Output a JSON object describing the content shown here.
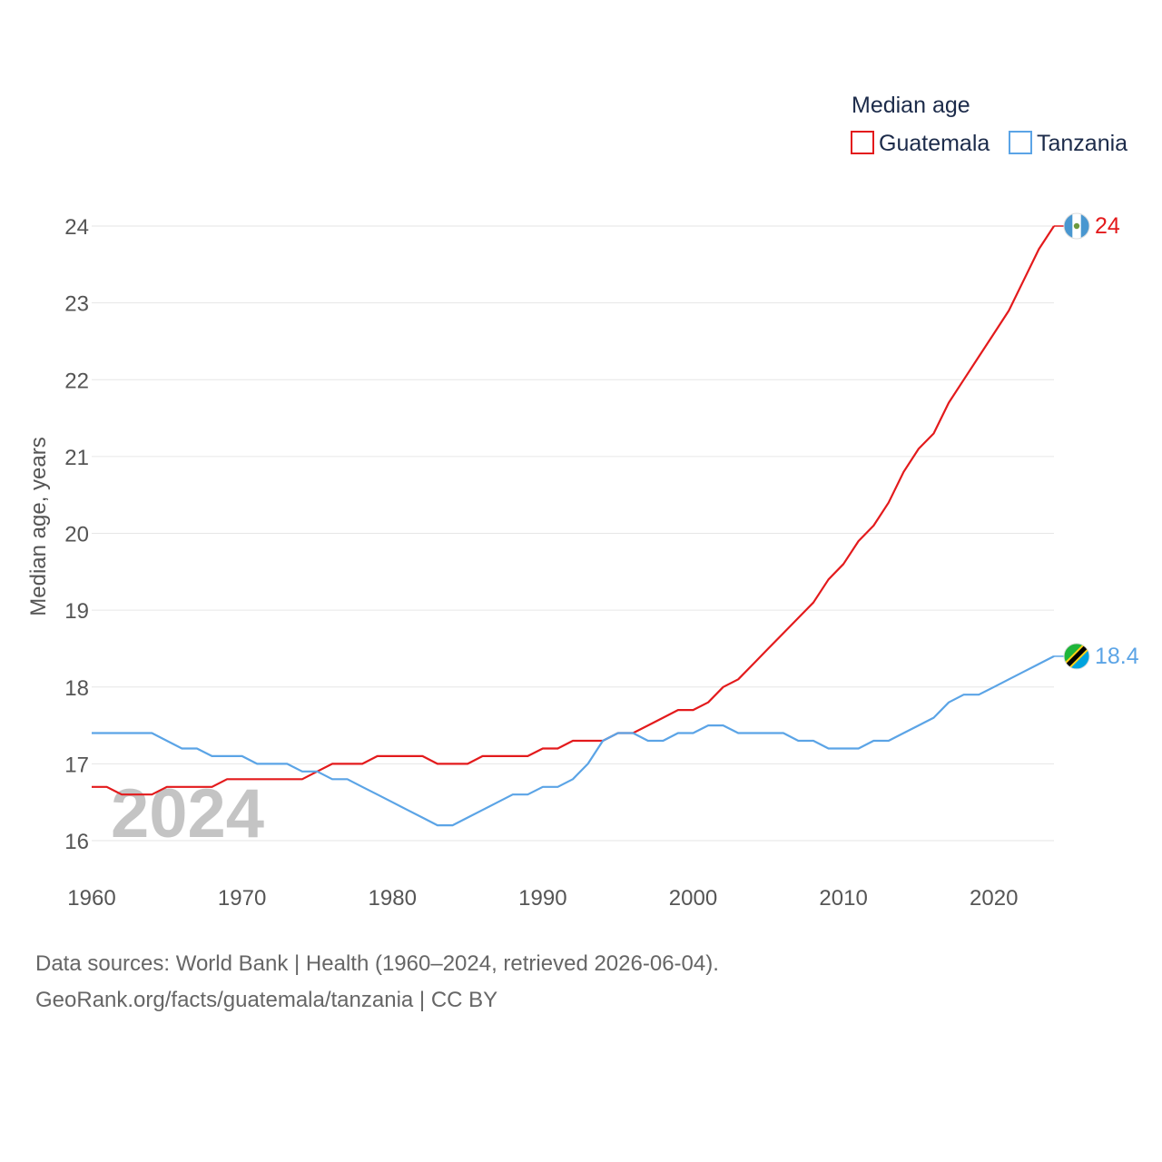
{
  "chart_data": {
    "type": "line",
    "legend_title": "Median age",
    "ylabel": "Median age, years",
    "xlim": [
      1960,
      2024
    ],
    "ylim": [
      16,
      24
    ],
    "x_ticks": [
      1960,
      1970,
      1980,
      1990,
      2000,
      2010,
      2020
    ],
    "y_ticks": [
      16,
      17,
      18,
      19,
      20,
      21,
      22,
      23,
      24
    ],
    "year_badge": "2024",
    "series": [
      {
        "name": "Guatemala",
        "color": "#e31a1c",
        "end_label": "24",
        "flag_icon": "guatemala-flag-icon",
        "x": [
          1960,
          1961,
          1962,
          1963,
          1964,
          1965,
          1966,
          1967,
          1968,
          1969,
          1970,
          1971,
          1972,
          1973,
          1974,
          1975,
          1976,
          1977,
          1978,
          1979,
          1980,
          1981,
          1982,
          1983,
          1984,
          1985,
          1986,
          1987,
          1988,
          1989,
          1990,
          1991,
          1992,
          1993,
          1994,
          1995,
          1996,
          1997,
          1998,
          1999,
          2000,
          2001,
          2002,
          2003,
          2004,
          2005,
          2006,
          2007,
          2008,
          2009,
          2010,
          2011,
          2012,
          2013,
          2014,
          2015,
          2016,
          2017,
          2018,
          2019,
          2020,
          2021,
          2022,
          2023,
          2024
        ],
        "values": [
          16.7,
          16.7,
          16.6,
          16.6,
          16.6,
          16.7,
          16.7,
          16.7,
          16.7,
          16.8,
          16.8,
          16.8,
          16.8,
          16.8,
          16.8,
          16.9,
          17.0,
          17.0,
          17.0,
          17.1,
          17.1,
          17.1,
          17.1,
          17.0,
          17.0,
          17.0,
          17.1,
          17.1,
          17.1,
          17.1,
          17.2,
          17.2,
          17.3,
          17.3,
          17.3,
          17.4,
          17.4,
          17.5,
          17.6,
          17.7,
          17.7,
          17.8,
          18.0,
          18.1,
          18.3,
          18.5,
          18.7,
          18.9,
          19.1,
          19.4,
          19.6,
          19.9,
          20.1,
          20.4,
          20.8,
          21.1,
          21.3,
          21.7,
          22.0,
          22.3,
          22.6,
          22.9,
          23.3,
          23.7,
          24.0
        ]
      },
      {
        "name": "Tanzania",
        "color": "#5ba4e6",
        "end_label": "18.4",
        "flag_icon": "tanzania-flag-icon",
        "x": [
          1960,
          1961,
          1962,
          1963,
          1964,
          1965,
          1966,
          1967,
          1968,
          1969,
          1970,
          1971,
          1972,
          1973,
          1974,
          1975,
          1976,
          1977,
          1978,
          1979,
          1980,
          1981,
          1982,
          1983,
          1984,
          1985,
          1986,
          1987,
          1988,
          1989,
          1990,
          1991,
          1992,
          1993,
          1994,
          1995,
          1996,
          1997,
          1998,
          1999,
          2000,
          2001,
          2002,
          2003,
          2004,
          2005,
          2006,
          2007,
          2008,
          2009,
          2010,
          2011,
          2012,
          2013,
          2014,
          2015,
          2016,
          2017,
          2018,
          2019,
          2020,
          2021,
          2022,
          2023,
          2024
        ],
        "values": [
          17.4,
          17.4,
          17.4,
          17.4,
          17.4,
          17.3,
          17.2,
          17.2,
          17.1,
          17.1,
          17.1,
          17.0,
          17.0,
          17.0,
          16.9,
          16.9,
          16.8,
          16.8,
          16.7,
          16.6,
          16.5,
          16.4,
          16.3,
          16.2,
          16.2,
          16.3,
          16.4,
          16.5,
          16.6,
          16.6,
          16.7,
          16.7,
          16.8,
          17.0,
          17.3,
          17.4,
          17.4,
          17.3,
          17.3,
          17.4,
          17.4,
          17.5,
          17.5,
          17.4,
          17.4,
          17.4,
          17.4,
          17.3,
          17.3,
          17.2,
          17.2,
          17.2,
          17.3,
          17.3,
          17.4,
          17.5,
          17.6,
          17.8,
          17.9,
          17.9,
          18.0,
          18.1,
          18.2,
          18.3,
          18.4
        ]
      }
    ]
  },
  "footer": {
    "sources": "Data sources: World Bank | Health (1960–2024, retrieved 2026-06-04).",
    "url": "GeoRank.org/facts/guatemala/tanzania | CC BY"
  }
}
